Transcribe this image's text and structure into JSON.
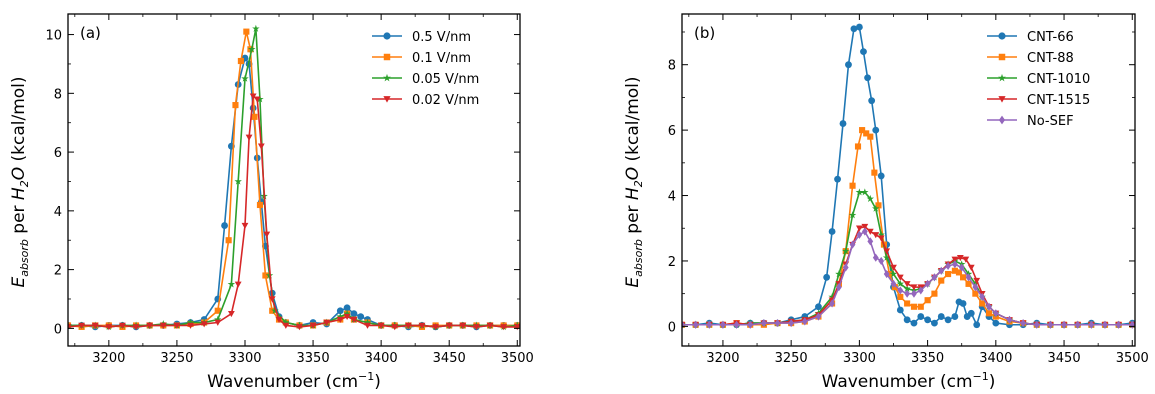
{
  "chart_data": [
    {
      "type": "line",
      "panel_label": "(a)",
      "xlabel": "Wavenumber (cm",
      "xlabel_sup": "−1",
      "xlabel_close": ")",
      "ylabel_main": "E",
      "ylabel_sub": "absorb",
      "ylabel_mid": " per ",
      "ylabel_h": "H",
      "ylabel_h_sub": "2",
      "ylabel_o": "O",
      "ylabel_unit": " (kcal/mol)",
      "xlim": [
        3170,
        3502
      ],
      "ylim": [
        -0.6,
        10.7
      ],
      "xticks": [
        3200,
        3250,
        3300,
        3350,
        3400,
        3450,
        3500
      ],
      "yticks": [
        0,
        2,
        4,
        6,
        8,
        10
      ],
      "legend_position": "top-right",
      "series": [
        {
          "name": "0.5 V/nm",
          "color": "#1f77b4",
          "marker": "circle",
          "x": [
            3170,
            3180,
            3190,
            3200,
            3210,
            3220,
            3230,
            3240,
            3250,
            3260,
            3270,
            3280,
            3285,
            3290,
            3295,
            3300,
            3303,
            3306,
            3309,
            3312,
            3315,
            3320,
            3325,
            3330,
            3340,
            3350,
            3360,
            3370,
            3375,
            3380,
            3385,
            3390,
            3400,
            3410,
            3420,
            3430,
            3440,
            3450,
            3460,
            3470,
            3480,
            3490,
            3500
          ],
          "y": [
            0.1,
            0.1,
            0.05,
            0.1,
            0.1,
            0.05,
            0.1,
            0.1,
            0.15,
            0.2,
            0.3,
            1.0,
            3.5,
            6.2,
            8.3,
            9.2,
            9.0,
            7.5,
            5.8,
            4.3,
            2.8,
            1.2,
            0.4,
            0.2,
            0.1,
            0.2,
            0.15,
            0.6,
            0.7,
            0.5,
            0.4,
            0.3,
            0.1,
            0.1,
            0.05,
            0.1,
            0.05,
            0.1,
            0.1,
            0.05,
            0.1,
            0.1,
            0.1
          ]
        },
        {
          "name": "0.1 V/nm",
          "color": "#ff7f0e",
          "marker": "square",
          "x": [
            3170,
            3180,
            3190,
            3200,
            3210,
            3220,
            3230,
            3240,
            3250,
            3260,
            3270,
            3280,
            3288,
            3293,
            3297,
            3301,
            3304,
            3307,
            3311,
            3315,
            3320,
            3325,
            3330,
            3340,
            3350,
            3360,
            3370,
            3375,
            3380,
            3390,
            3400,
            3410,
            3420,
            3430,
            3440,
            3450,
            3460,
            3470,
            3480,
            3490,
            3500
          ],
          "y": [
            0.1,
            0.05,
            0.1,
            0.1,
            0.05,
            0.1,
            0.1,
            0.1,
            0.1,
            0.15,
            0.2,
            0.6,
            3.0,
            7.6,
            9.1,
            10.1,
            9.5,
            7.2,
            4.2,
            1.8,
            0.6,
            0.3,
            0.2,
            0.1,
            0.1,
            0.2,
            0.3,
            0.5,
            0.3,
            0.2,
            0.1,
            0.1,
            0.1,
            0.05,
            0.1,
            0.1,
            0.1,
            0.1,
            0.1,
            0.1,
            0.1
          ]
        },
        {
          "name": "0.05 V/nm",
          "color": "#2ca02c",
          "marker": "star",
          "x": [
            3170,
            3180,
            3190,
            3200,
            3210,
            3220,
            3230,
            3240,
            3250,
            3260,
            3270,
            3280,
            3290,
            3295,
            3300,
            3305,
            3308,
            3311,
            3314,
            3318,
            3322,
            3330,
            3340,
            3350,
            3360,
            3370,
            3375,
            3380,
            3390,
            3400,
            3410,
            3420,
            3430,
            3440,
            3450,
            3460,
            3470,
            3480,
            3490,
            3500
          ],
          "y": [
            0.1,
            0.1,
            0.1,
            0.05,
            0.1,
            0.1,
            0.1,
            0.15,
            0.1,
            0.2,
            0.2,
            0.3,
            1.5,
            5.0,
            8.5,
            9.5,
            10.2,
            7.8,
            4.5,
            1.8,
            0.6,
            0.2,
            0.1,
            0.1,
            0.2,
            0.4,
            0.5,
            0.3,
            0.2,
            0.1,
            0.1,
            0.1,
            0.1,
            0.05,
            0.1,
            0.1,
            0.1,
            0.1,
            0.05,
            0.1
          ]
        },
        {
          "name": "0.02 V/nm",
          "color": "#d62728",
          "marker": "triangle-down",
          "x": [
            3170,
            3180,
            3190,
            3200,
            3210,
            3220,
            3230,
            3240,
            3250,
            3260,
            3270,
            3280,
            3290,
            3295,
            3300,
            3303,
            3306,
            3309,
            3312,
            3316,
            3320,
            3325,
            3330,
            3340,
            3350,
            3360,
            3370,
            3375,
            3380,
            3390,
            3400,
            3410,
            3420,
            3430,
            3440,
            3450,
            3460,
            3470,
            3480,
            3490,
            3500
          ],
          "y": [
            0.05,
            0.1,
            0.1,
            0.05,
            0.1,
            0.05,
            0.1,
            0.1,
            0.1,
            0.1,
            0.15,
            0.2,
            0.5,
            1.5,
            3.5,
            6.5,
            7.9,
            7.8,
            6.2,
            3.2,
            1.0,
            0.3,
            0.1,
            0.05,
            0.1,
            0.2,
            0.3,
            0.4,
            0.3,
            0.1,
            0.1,
            0.05,
            0.1,
            0.1,
            0.05,
            0.1,
            0.1,
            0.05,
            0.1,
            0.05,
            0.05
          ]
        }
      ]
    },
    {
      "type": "line",
      "panel_label": "(b)",
      "xlabel": "Wavenumber (cm",
      "xlabel_sup": "−1",
      "xlabel_close": ")",
      "ylabel_main": "E",
      "ylabel_sub": "absorb",
      "ylabel_mid": " per ",
      "ylabel_h": "H",
      "ylabel_h_sub": "2",
      "ylabel_o": "O",
      "ylabel_unit": " (kcal/mol)",
      "xlim": [
        3170,
        3502
      ],
      "ylim": [
        -0.6,
        9.55
      ],
      "xticks": [
        3200,
        3250,
        3300,
        3350,
        3400,
        3450,
        3500
      ],
      "yticks": [
        0,
        2,
        4,
        6,
        8
      ],
      "legend_position": "top-right",
      "series": [
        {
          "name": "CNT-66",
          "color": "#1f77b4",
          "marker": "circle",
          "x": [
            3170,
            3180,
            3190,
            3200,
            3210,
            3220,
            3230,
            3240,
            3250,
            3260,
            3270,
            3276,
            3280,
            3284,
            3288,
            3292,
            3296,
            3300,
            3303,
            3306,
            3309,
            3312,
            3316,
            3320,
            3325,
            3330,
            3335,
            3340,
            3345,
            3350,
            3355,
            3360,
            3365,
            3370,
            3373,
            3376,
            3379,
            3382,
            3386,
            3390,
            3395,
            3400,
            3410,
            3420,
            3430,
            3440,
            3450,
            3460,
            3470,
            3480,
            3490,
            3500
          ],
          "y": [
            0.05,
            0.05,
            0.1,
            0.05,
            0.05,
            0.1,
            0.1,
            0.1,
            0.2,
            0.3,
            0.6,
            1.5,
            2.9,
            4.5,
            6.2,
            8.0,
            9.1,
            9.15,
            8.4,
            7.6,
            6.9,
            6.0,
            4.6,
            2.5,
            1.2,
            0.5,
            0.2,
            0.1,
            0.3,
            0.2,
            0.1,
            0.3,
            0.2,
            0.3,
            0.75,
            0.7,
            0.3,
            0.4,
            0.05,
            0.6,
            0.3,
            0.1,
            0.05,
            0.05,
            0.1,
            0.05,
            0.05,
            0.05,
            0.1,
            0.05,
            0.05,
            0.1
          ]
        },
        {
          "name": "CNT-88",
          "color": "#ff7f0e",
          "marker": "square",
          "x": [
            3170,
            3180,
            3190,
            3200,
            3210,
            3220,
            3230,
            3240,
            3250,
            3260,
            3270,
            3280,
            3285,
            3290,
            3295,
            3299,
            3302,
            3305,
            3308,
            3311,
            3314,
            3318,
            3322,
            3326,
            3330,
            3335,
            3340,
            3345,
            3350,
            3355,
            3360,
            3365,
            3370,
            3373,
            3376,
            3380,
            3385,
            3390,
            3395,
            3400,
            3410,
            3420,
            3430,
            3440,
            3450,
            3460,
            3470,
            3480,
            3490,
            3500
          ],
          "y": [
            0.05,
            0.05,
            0.05,
            0.05,
            0.1,
            0.05,
            0.05,
            0.1,
            0.1,
            0.15,
            0.3,
            0.7,
            1.3,
            2.3,
            4.3,
            5.5,
            6.0,
            5.9,
            5.8,
            4.7,
            3.7,
            2.5,
            1.6,
            1.2,
            0.9,
            0.7,
            0.6,
            0.6,
            0.8,
            1.0,
            1.4,
            1.6,
            1.7,
            1.65,
            1.5,
            1.3,
            1.0,
            0.7,
            0.4,
            0.3,
            0.15,
            0.1,
            0.05,
            0.05,
            0.05,
            0.05,
            0.05,
            0.05,
            0.05,
            0.05
          ]
        },
        {
          "name": "CNT-1010",
          "color": "#2ca02c",
          "marker": "star",
          "x": [
            3170,
            3180,
            3190,
            3200,
            3210,
            3220,
            3230,
            3240,
            3250,
            3260,
            3270,
            3280,
            3285,
            3290,
            3295,
            3300,
            3304,
            3308,
            3312,
            3316,
            3320,
            3325,
            3330,
            3335,
            3340,
            3345,
            3350,
            3355,
            3360,
            3365,
            3370,
            3375,
            3380,
            3385,
            3390,
            3395,
            3400,
            3410,
            3420,
            3430,
            3440,
            3450,
            3460,
            3470,
            3480,
            3490,
            3500
          ],
          "y": [
            0.05,
            0.05,
            0.05,
            0.05,
            0.05,
            0.1,
            0.1,
            0.1,
            0.15,
            0.2,
            0.4,
            0.9,
            1.6,
            2.3,
            3.4,
            4.1,
            4.1,
            3.9,
            3.6,
            2.8,
            2.1,
            1.6,
            1.3,
            1.15,
            1.1,
            1.15,
            1.3,
            1.5,
            1.7,
            1.9,
            2.0,
            1.9,
            1.6,
            1.3,
            0.9,
            0.6,
            0.4,
            0.2,
            0.1,
            0.05,
            0.05,
            0.05,
            0.05,
            0.05,
            0.05,
            0.05,
            0.05
          ]
        },
        {
          "name": "CNT-1515",
          "color": "#d62728",
          "marker": "triangle-down",
          "x": [
            3170,
            3180,
            3190,
            3200,
            3210,
            3220,
            3230,
            3240,
            3250,
            3260,
            3270,
            3280,
            3285,
            3290,
            3295,
            3300,
            3304,
            3308,
            3312,
            3316,
            3320,
            3325,
            3330,
            3335,
            3340,
            3345,
            3350,
            3355,
            3360,
            3365,
            3370,
            3374,
            3378,
            3382,
            3386,
            3390,
            3395,
            3400,
            3410,
            3420,
            3430,
            3440,
            3450,
            3460,
            3470,
            3480,
            3490,
            3500
          ],
          "y": [
            0.05,
            0.05,
            0.05,
            0.05,
            0.1,
            0.05,
            0.1,
            0.1,
            0.15,
            0.2,
            0.35,
            0.8,
            1.3,
            1.9,
            2.5,
            3.0,
            3.05,
            2.9,
            2.8,
            2.7,
            2.3,
            1.8,
            1.5,
            1.3,
            1.2,
            1.2,
            1.3,
            1.5,
            1.7,
            1.9,
            2.05,
            2.1,
            2.05,
            1.8,
            1.4,
            1.0,
            0.6,
            0.4,
            0.2,
            0.1,
            0.05,
            0.05,
            0.05,
            0.05,
            0.05,
            0.05,
            0.05,
            0.05
          ]
        },
        {
          "name": "No-SEF",
          "color": "#9467bd",
          "marker": "diamond",
          "x": [
            3170,
            3180,
            3190,
            3200,
            3210,
            3220,
            3230,
            3240,
            3250,
            3260,
            3270,
            3280,
            3285,
            3290,
            3295,
            3300,
            3304,
            3308,
            3312,
            3316,
            3320,
            3325,
            3330,
            3335,
            3340,
            3345,
            3350,
            3355,
            3360,
            3365,
            3370,
            3375,
            3380,
            3385,
            3390,
            3395,
            3400,
            3410,
            3420,
            3430,
            3440,
            3450,
            3460,
            3470,
            3480,
            3490,
            3500
          ],
          "y": [
            0.05,
            0.05,
            0.05,
            0.05,
            0.05,
            0.05,
            0.1,
            0.1,
            0.1,
            0.15,
            0.3,
            0.7,
            1.2,
            1.8,
            2.5,
            2.8,
            2.9,
            2.6,
            2.1,
            2.0,
            1.6,
            1.3,
            1.1,
            1.0,
            1.0,
            1.1,
            1.3,
            1.5,
            1.7,
            1.85,
            1.9,
            1.8,
            1.5,
            1.2,
            0.9,
            0.6,
            0.4,
            0.2,
            0.1,
            0.05,
            0.05,
            0.05,
            0.05,
            0.05,
            0.05,
            0.05,
            0.05
          ]
        }
      ]
    }
  ]
}
